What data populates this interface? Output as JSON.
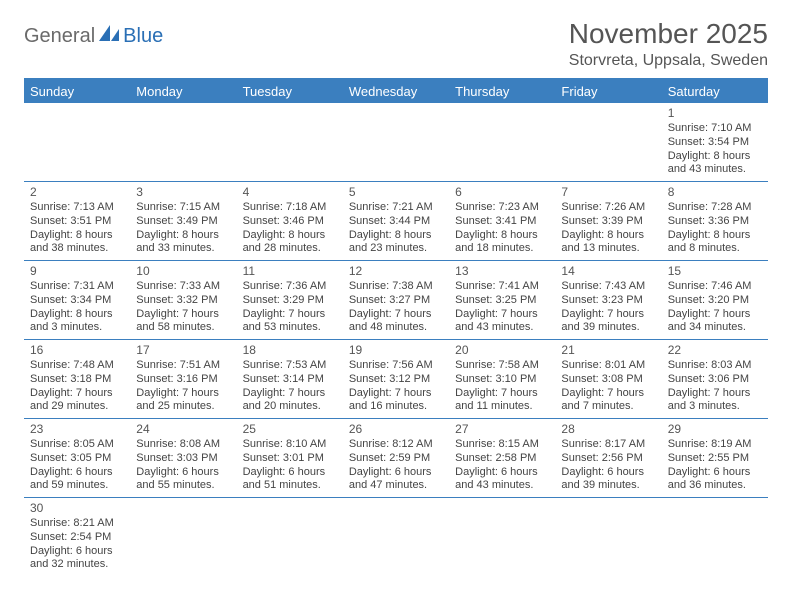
{
  "logo": {
    "general": "General",
    "blue": "Blue"
  },
  "title": "November 2025",
  "location": "Storvreta, Uppsala, Sweden",
  "colors": {
    "header_bg": "#3b7fbf",
    "header_text": "#ffffff",
    "row_border": "#3b7fbf",
    "text": "#444444",
    "title_color": "#555555"
  },
  "days_of_week": [
    "Sunday",
    "Monday",
    "Tuesday",
    "Wednesday",
    "Thursday",
    "Friday",
    "Saturday"
  ],
  "weeks": [
    [
      null,
      null,
      null,
      null,
      null,
      null,
      {
        "n": "1",
        "sr": "Sunrise: 7:10 AM",
        "ss": "Sunset: 3:54 PM",
        "d1": "Daylight: 8 hours",
        "d2": "and 43 minutes."
      }
    ],
    [
      {
        "n": "2",
        "sr": "Sunrise: 7:13 AM",
        "ss": "Sunset: 3:51 PM",
        "d1": "Daylight: 8 hours",
        "d2": "and 38 minutes."
      },
      {
        "n": "3",
        "sr": "Sunrise: 7:15 AM",
        "ss": "Sunset: 3:49 PM",
        "d1": "Daylight: 8 hours",
        "d2": "and 33 minutes."
      },
      {
        "n": "4",
        "sr": "Sunrise: 7:18 AM",
        "ss": "Sunset: 3:46 PM",
        "d1": "Daylight: 8 hours",
        "d2": "and 28 minutes."
      },
      {
        "n": "5",
        "sr": "Sunrise: 7:21 AM",
        "ss": "Sunset: 3:44 PM",
        "d1": "Daylight: 8 hours",
        "d2": "and 23 minutes."
      },
      {
        "n": "6",
        "sr": "Sunrise: 7:23 AM",
        "ss": "Sunset: 3:41 PM",
        "d1": "Daylight: 8 hours",
        "d2": "and 18 minutes."
      },
      {
        "n": "7",
        "sr": "Sunrise: 7:26 AM",
        "ss": "Sunset: 3:39 PM",
        "d1": "Daylight: 8 hours",
        "d2": "and 13 minutes."
      },
      {
        "n": "8",
        "sr": "Sunrise: 7:28 AM",
        "ss": "Sunset: 3:36 PM",
        "d1": "Daylight: 8 hours",
        "d2": "and 8 minutes."
      }
    ],
    [
      {
        "n": "9",
        "sr": "Sunrise: 7:31 AM",
        "ss": "Sunset: 3:34 PM",
        "d1": "Daylight: 8 hours",
        "d2": "and 3 minutes."
      },
      {
        "n": "10",
        "sr": "Sunrise: 7:33 AM",
        "ss": "Sunset: 3:32 PM",
        "d1": "Daylight: 7 hours",
        "d2": "and 58 minutes."
      },
      {
        "n": "11",
        "sr": "Sunrise: 7:36 AM",
        "ss": "Sunset: 3:29 PM",
        "d1": "Daylight: 7 hours",
        "d2": "and 53 minutes."
      },
      {
        "n": "12",
        "sr": "Sunrise: 7:38 AM",
        "ss": "Sunset: 3:27 PM",
        "d1": "Daylight: 7 hours",
        "d2": "and 48 minutes."
      },
      {
        "n": "13",
        "sr": "Sunrise: 7:41 AM",
        "ss": "Sunset: 3:25 PM",
        "d1": "Daylight: 7 hours",
        "d2": "and 43 minutes."
      },
      {
        "n": "14",
        "sr": "Sunrise: 7:43 AM",
        "ss": "Sunset: 3:23 PM",
        "d1": "Daylight: 7 hours",
        "d2": "and 39 minutes."
      },
      {
        "n": "15",
        "sr": "Sunrise: 7:46 AM",
        "ss": "Sunset: 3:20 PM",
        "d1": "Daylight: 7 hours",
        "d2": "and 34 minutes."
      }
    ],
    [
      {
        "n": "16",
        "sr": "Sunrise: 7:48 AM",
        "ss": "Sunset: 3:18 PM",
        "d1": "Daylight: 7 hours",
        "d2": "and 29 minutes."
      },
      {
        "n": "17",
        "sr": "Sunrise: 7:51 AM",
        "ss": "Sunset: 3:16 PM",
        "d1": "Daylight: 7 hours",
        "d2": "and 25 minutes."
      },
      {
        "n": "18",
        "sr": "Sunrise: 7:53 AM",
        "ss": "Sunset: 3:14 PM",
        "d1": "Daylight: 7 hours",
        "d2": "and 20 minutes."
      },
      {
        "n": "19",
        "sr": "Sunrise: 7:56 AM",
        "ss": "Sunset: 3:12 PM",
        "d1": "Daylight: 7 hours",
        "d2": "and 16 minutes."
      },
      {
        "n": "20",
        "sr": "Sunrise: 7:58 AM",
        "ss": "Sunset: 3:10 PM",
        "d1": "Daylight: 7 hours",
        "d2": "and 11 minutes."
      },
      {
        "n": "21",
        "sr": "Sunrise: 8:01 AM",
        "ss": "Sunset: 3:08 PM",
        "d1": "Daylight: 7 hours",
        "d2": "and 7 minutes."
      },
      {
        "n": "22",
        "sr": "Sunrise: 8:03 AM",
        "ss": "Sunset: 3:06 PM",
        "d1": "Daylight: 7 hours",
        "d2": "and 3 minutes."
      }
    ],
    [
      {
        "n": "23",
        "sr": "Sunrise: 8:05 AM",
        "ss": "Sunset: 3:05 PM",
        "d1": "Daylight: 6 hours",
        "d2": "and 59 minutes."
      },
      {
        "n": "24",
        "sr": "Sunrise: 8:08 AM",
        "ss": "Sunset: 3:03 PM",
        "d1": "Daylight: 6 hours",
        "d2": "and 55 minutes."
      },
      {
        "n": "25",
        "sr": "Sunrise: 8:10 AM",
        "ss": "Sunset: 3:01 PM",
        "d1": "Daylight: 6 hours",
        "d2": "and 51 minutes."
      },
      {
        "n": "26",
        "sr": "Sunrise: 8:12 AM",
        "ss": "Sunset: 2:59 PM",
        "d1": "Daylight: 6 hours",
        "d2": "and 47 minutes."
      },
      {
        "n": "27",
        "sr": "Sunrise: 8:15 AM",
        "ss": "Sunset: 2:58 PM",
        "d1": "Daylight: 6 hours",
        "d2": "and 43 minutes."
      },
      {
        "n": "28",
        "sr": "Sunrise: 8:17 AM",
        "ss": "Sunset: 2:56 PM",
        "d1": "Daylight: 6 hours",
        "d2": "and 39 minutes."
      },
      {
        "n": "29",
        "sr": "Sunrise: 8:19 AM",
        "ss": "Sunset: 2:55 PM",
        "d1": "Daylight: 6 hours",
        "d2": "and 36 minutes."
      }
    ],
    [
      {
        "n": "30",
        "sr": "Sunrise: 8:21 AM",
        "ss": "Sunset: 2:54 PM",
        "d1": "Daylight: 6 hours",
        "d2": "and 32 minutes."
      },
      null,
      null,
      null,
      null,
      null,
      null
    ]
  ]
}
